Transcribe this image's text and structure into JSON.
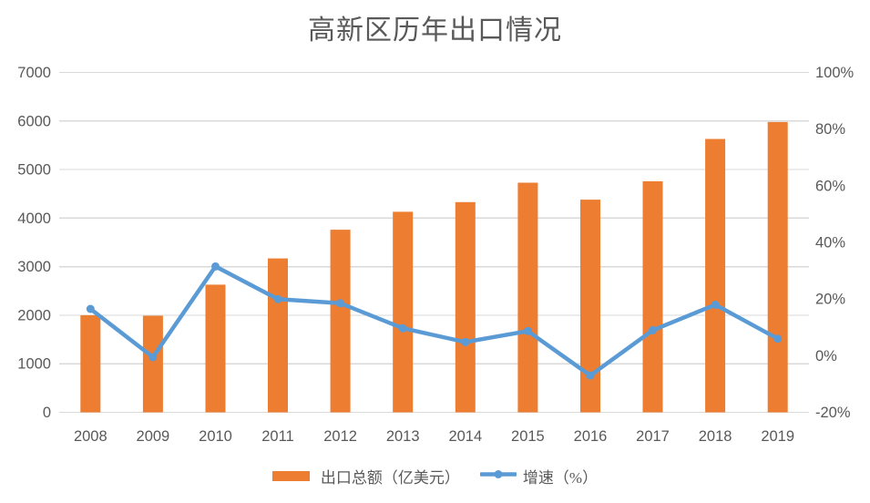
{
  "chart_data": {
    "type": "bar+line",
    "title": "高新区历年出口情况",
    "categories": [
      "2008",
      "2009",
      "2010",
      "2011",
      "2012",
      "2013",
      "2014",
      "2015",
      "2016",
      "2017",
      "2018",
      "2019"
    ],
    "series": [
      {
        "name": "出口总额（亿美元）",
        "type": "bar",
        "axis": "left",
        "color": "#ED7D31",
        "values": [
          2000,
          1990,
          2630,
          3170,
          3760,
          4130,
          4330,
          4730,
          4380,
          4760,
          5630,
          5980
        ]
      },
      {
        "name": "增速（%）",
        "type": "line",
        "axis": "right",
        "color": "#5B9BD5",
        "values": [
          16.5,
          -0.5,
          31.5,
          20,
          18.5,
          9.7,
          4.8,
          8.7,
          -7,
          9,
          18,
          6
        ]
      }
    ],
    "left_axis": {
      "min": 0,
      "max": 7000,
      "step": 1000,
      "labels": [
        "0",
        "1000",
        "2000",
        "3000",
        "4000",
        "5000",
        "6000",
        "7000"
      ]
    },
    "right_axis": {
      "min": -20,
      "max": 100,
      "step": 20,
      "labels": [
        "-20%",
        "0%",
        "20%",
        "40%",
        "60%",
        "80%",
        "100%"
      ]
    },
    "grid": {
      "horizontal": true,
      "source": "left_axis",
      "color": "#D9D9D9"
    },
    "legend_position": "bottom",
    "colors": {
      "bar": "#ED7D31",
      "line": "#5B9BD5",
      "text": "#595959",
      "gridline": "#D9D9D9",
      "background": "#FFFFFF"
    }
  }
}
